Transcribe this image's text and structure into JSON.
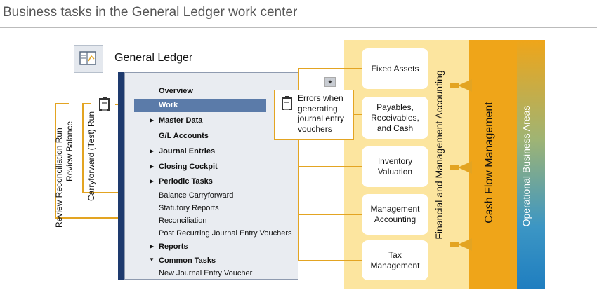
{
  "header": {
    "subtitle": "Business tasks in the General Ledger work center"
  },
  "work_center": {
    "title": "General Ledger",
    "icon": "ledger-icon",
    "pin_icon": "pin-icon"
  },
  "menu": {
    "overview": "Overview",
    "work": "Work",
    "master_data": "Master Data",
    "gl_accounts": "G/L Accounts",
    "journal_entries": "Journal Entries",
    "closing_cockpit": "Closing Cockpit",
    "periodic_tasks": "Periodic Tasks",
    "balance_carryforward": "Balance Carryforward",
    "statutory_reports": "Statutory Reports",
    "reconciliation": "Reconciliation",
    "post_recurring": "Post Recurring Journal Entry Vouchers",
    "reports": "Reports",
    "common_tasks": "Common Tasks",
    "new_voucher": "New Journal Entry Voucher"
  },
  "errors_box": {
    "text": "Errors when generating journal entry vouchers"
  },
  "left_labels": {
    "review_reconciliation": "Review Reconciliation Run",
    "review_balance": "Review Balance",
    "carryforward_test": "Carryforward (Test) Run"
  },
  "functions": {
    "fixed_assets": "Fixed Assets",
    "payables": "Payables, Receivables, and Cash",
    "inventory": "Inventory Valuation",
    "management": "Management Accounting",
    "tax": "Tax Management"
  },
  "bands": {
    "financial": "Financial and Management Accounting",
    "cash_flow": "Cash Flow Management",
    "operational": "Operational Business Areas"
  },
  "colors": {
    "accent": "#e3a422",
    "menu_selected": "#5b7ba9",
    "band_light": "#fce59f",
    "band_orange": "#efa519",
    "band_blue": "#1f7ec0"
  }
}
